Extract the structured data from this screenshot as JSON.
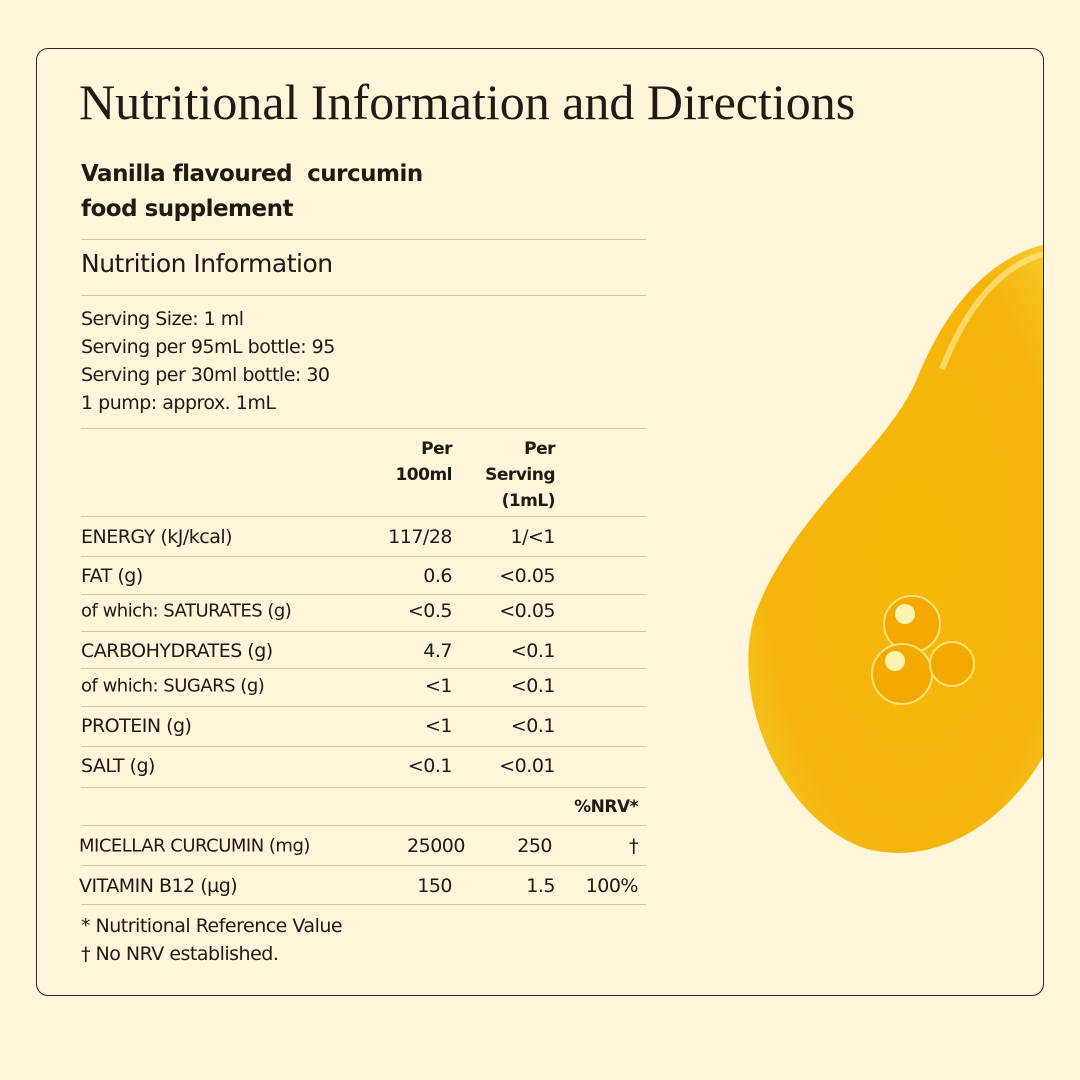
{
  "header": {
    "title": "Nutritional Information and Directions",
    "product": [
      "Vanilla flavoured  curcumin",
      "food supplement"
    ]
  },
  "section": {
    "title": "Nutrition Information",
    "serving": [
      "Serving Size: 1 ml",
      "Serving per 95mL bottle: 95",
      "Serving per 30ml bottle: 30",
      "1 pump: approx. 1mL"
    ]
  },
  "table": {
    "columns": [
      [
        "Per",
        "100ml"
      ],
      [
        "Per",
        "Serving",
        "(1mL)"
      ]
    ],
    "rows": [
      [
        "ENERGY (kJ/kcal)",
        "117/28",
        "1/<1"
      ],
      [
        "FAT (g)",
        "0.6",
        "<0.05"
      ],
      [
        "of which: SATURATES (g)",
        "<0.5",
        "<0.05"
      ],
      [
        "CARBOHYDRATES (g)",
        "4.7",
        "<0.1"
      ],
      [
        "of which: SUGARS (g)",
        "<1",
        "<0.1"
      ],
      [
        "PROTEIN (g)",
        "<1",
        "<0.1"
      ],
      [
        "SALT (g)",
        "<0.1",
        "<0.01"
      ]
    ],
    "nrv_header": "%NRV*",
    "nrv_rows": [
      [
        "MICELLAR CURCUMIN (mg)",
        "25000",
        "250",
        "†"
      ],
      [
        "VITAMIN B12 (µg)",
        "150",
        "1.5",
        "100%"
      ]
    ]
  },
  "footnotes": [
    "* Nutritional Reference Value",
    "† No NRV established."
  ]
}
